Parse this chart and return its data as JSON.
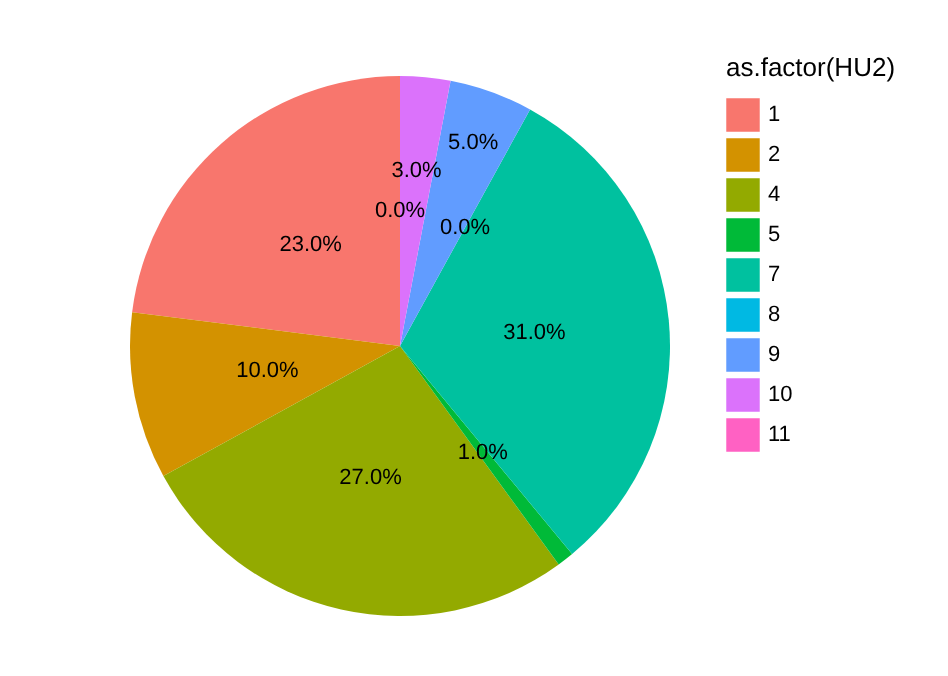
{
  "chart_data": {
    "type": "pie",
    "legend_title": "as.factor(HU2)",
    "legend": "right",
    "categories": [
      "1",
      "2",
      "4",
      "5",
      "7",
      "8",
      "9",
      "10",
      "11"
    ],
    "values": [
      23,
      10,
      27,
      1,
      31,
      0,
      5,
      3,
      0
    ],
    "colors": [
      "#f8766d",
      "#d39200",
      "#93aa00",
      "#00ba38",
      "#00c19f",
      "#00b9e3",
      "#619cff",
      "#db72fb",
      "#ff61c3"
    ],
    "value_labels": [
      "23.0%",
      "10.0%",
      "27.0%",
      "1.0%",
      "31.0%",
      "0.0%",
      "5.0%",
      "3.0%",
      "0.0%"
    ]
  }
}
